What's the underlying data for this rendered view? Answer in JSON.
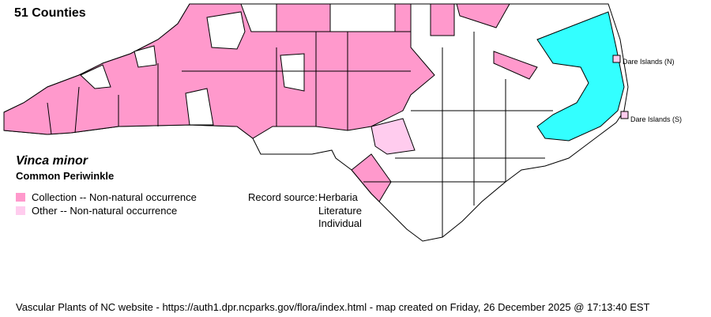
{
  "header": {
    "county_count": "51 Counties"
  },
  "species": {
    "scientific_name": "Vinca minor",
    "common_name": "Common Periwinkle"
  },
  "legend": [
    {
      "label": "Collection -- Non-natural occurrence",
      "color": "#ff99cc"
    },
    {
      "label": "Other -- Non-natural occurrence",
      "color": "#ffccee"
    }
  ],
  "record_source": {
    "label": "Record source:",
    "sources": [
      "Herbaria",
      "Literature",
      "Individual"
    ]
  },
  "islands": [
    {
      "label": "Dare Islands (N)",
      "status": "other"
    },
    {
      "label": "Dare Islands (S)",
      "status": "other"
    }
  ],
  "colors": {
    "water": "#33ffff",
    "collection": "#ff99cc",
    "other": "#ffccee",
    "absent": "#ffffff"
  },
  "footer": "Vascular Plants of NC website - https://auth1.dpr.ncparks.gov/flora/index.html - map created on Friday, 26 December 2025 @ 17:13:40 EST"
}
